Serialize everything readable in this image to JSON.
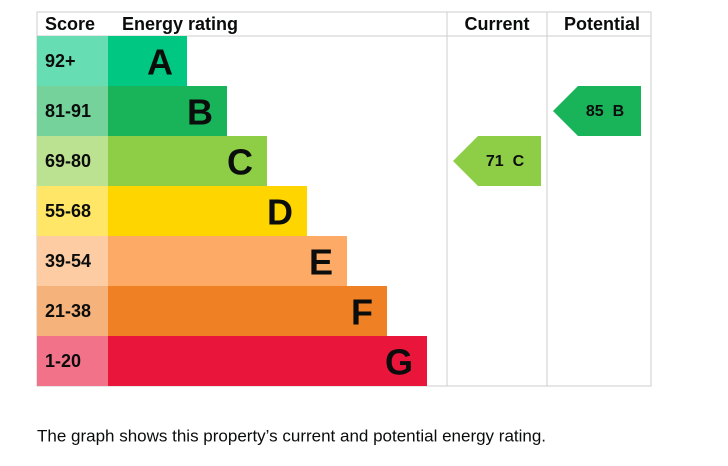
{
  "header": {
    "score": "Score",
    "rating": "Energy rating",
    "current": "Current",
    "potential": "Potential"
  },
  "bands": [
    {
      "score": "92+",
      "letter": "A",
      "color": "#00c781",
      "light": "#66ddb3"
    },
    {
      "score": "81-91",
      "letter": "B",
      "color": "#19b459",
      "light": "#75d29b"
    },
    {
      "score": "69-80",
      "letter": "C",
      "color": "#8dce46",
      "light": "#bbe290"
    },
    {
      "score": "55-68",
      "letter": "D",
      "color": "#ffd500",
      "light": "#ffe666"
    },
    {
      "score": "39-54",
      "letter": "E",
      "color": "#fcaa65",
      "light": "#fdcca3"
    },
    {
      "score": "21-38",
      "letter": "F",
      "color": "#ef8023",
      "light": "#f5b37b"
    },
    {
      "score": "1-20",
      "letter": "G",
      "color": "#e9153b",
      "light": "#f27389"
    }
  ],
  "current": {
    "value": 71,
    "letter": "C"
  },
  "potential": {
    "value": 85,
    "letter": "B"
  },
  "caption": "The graph shows this property’s current and potential energy rating."
}
